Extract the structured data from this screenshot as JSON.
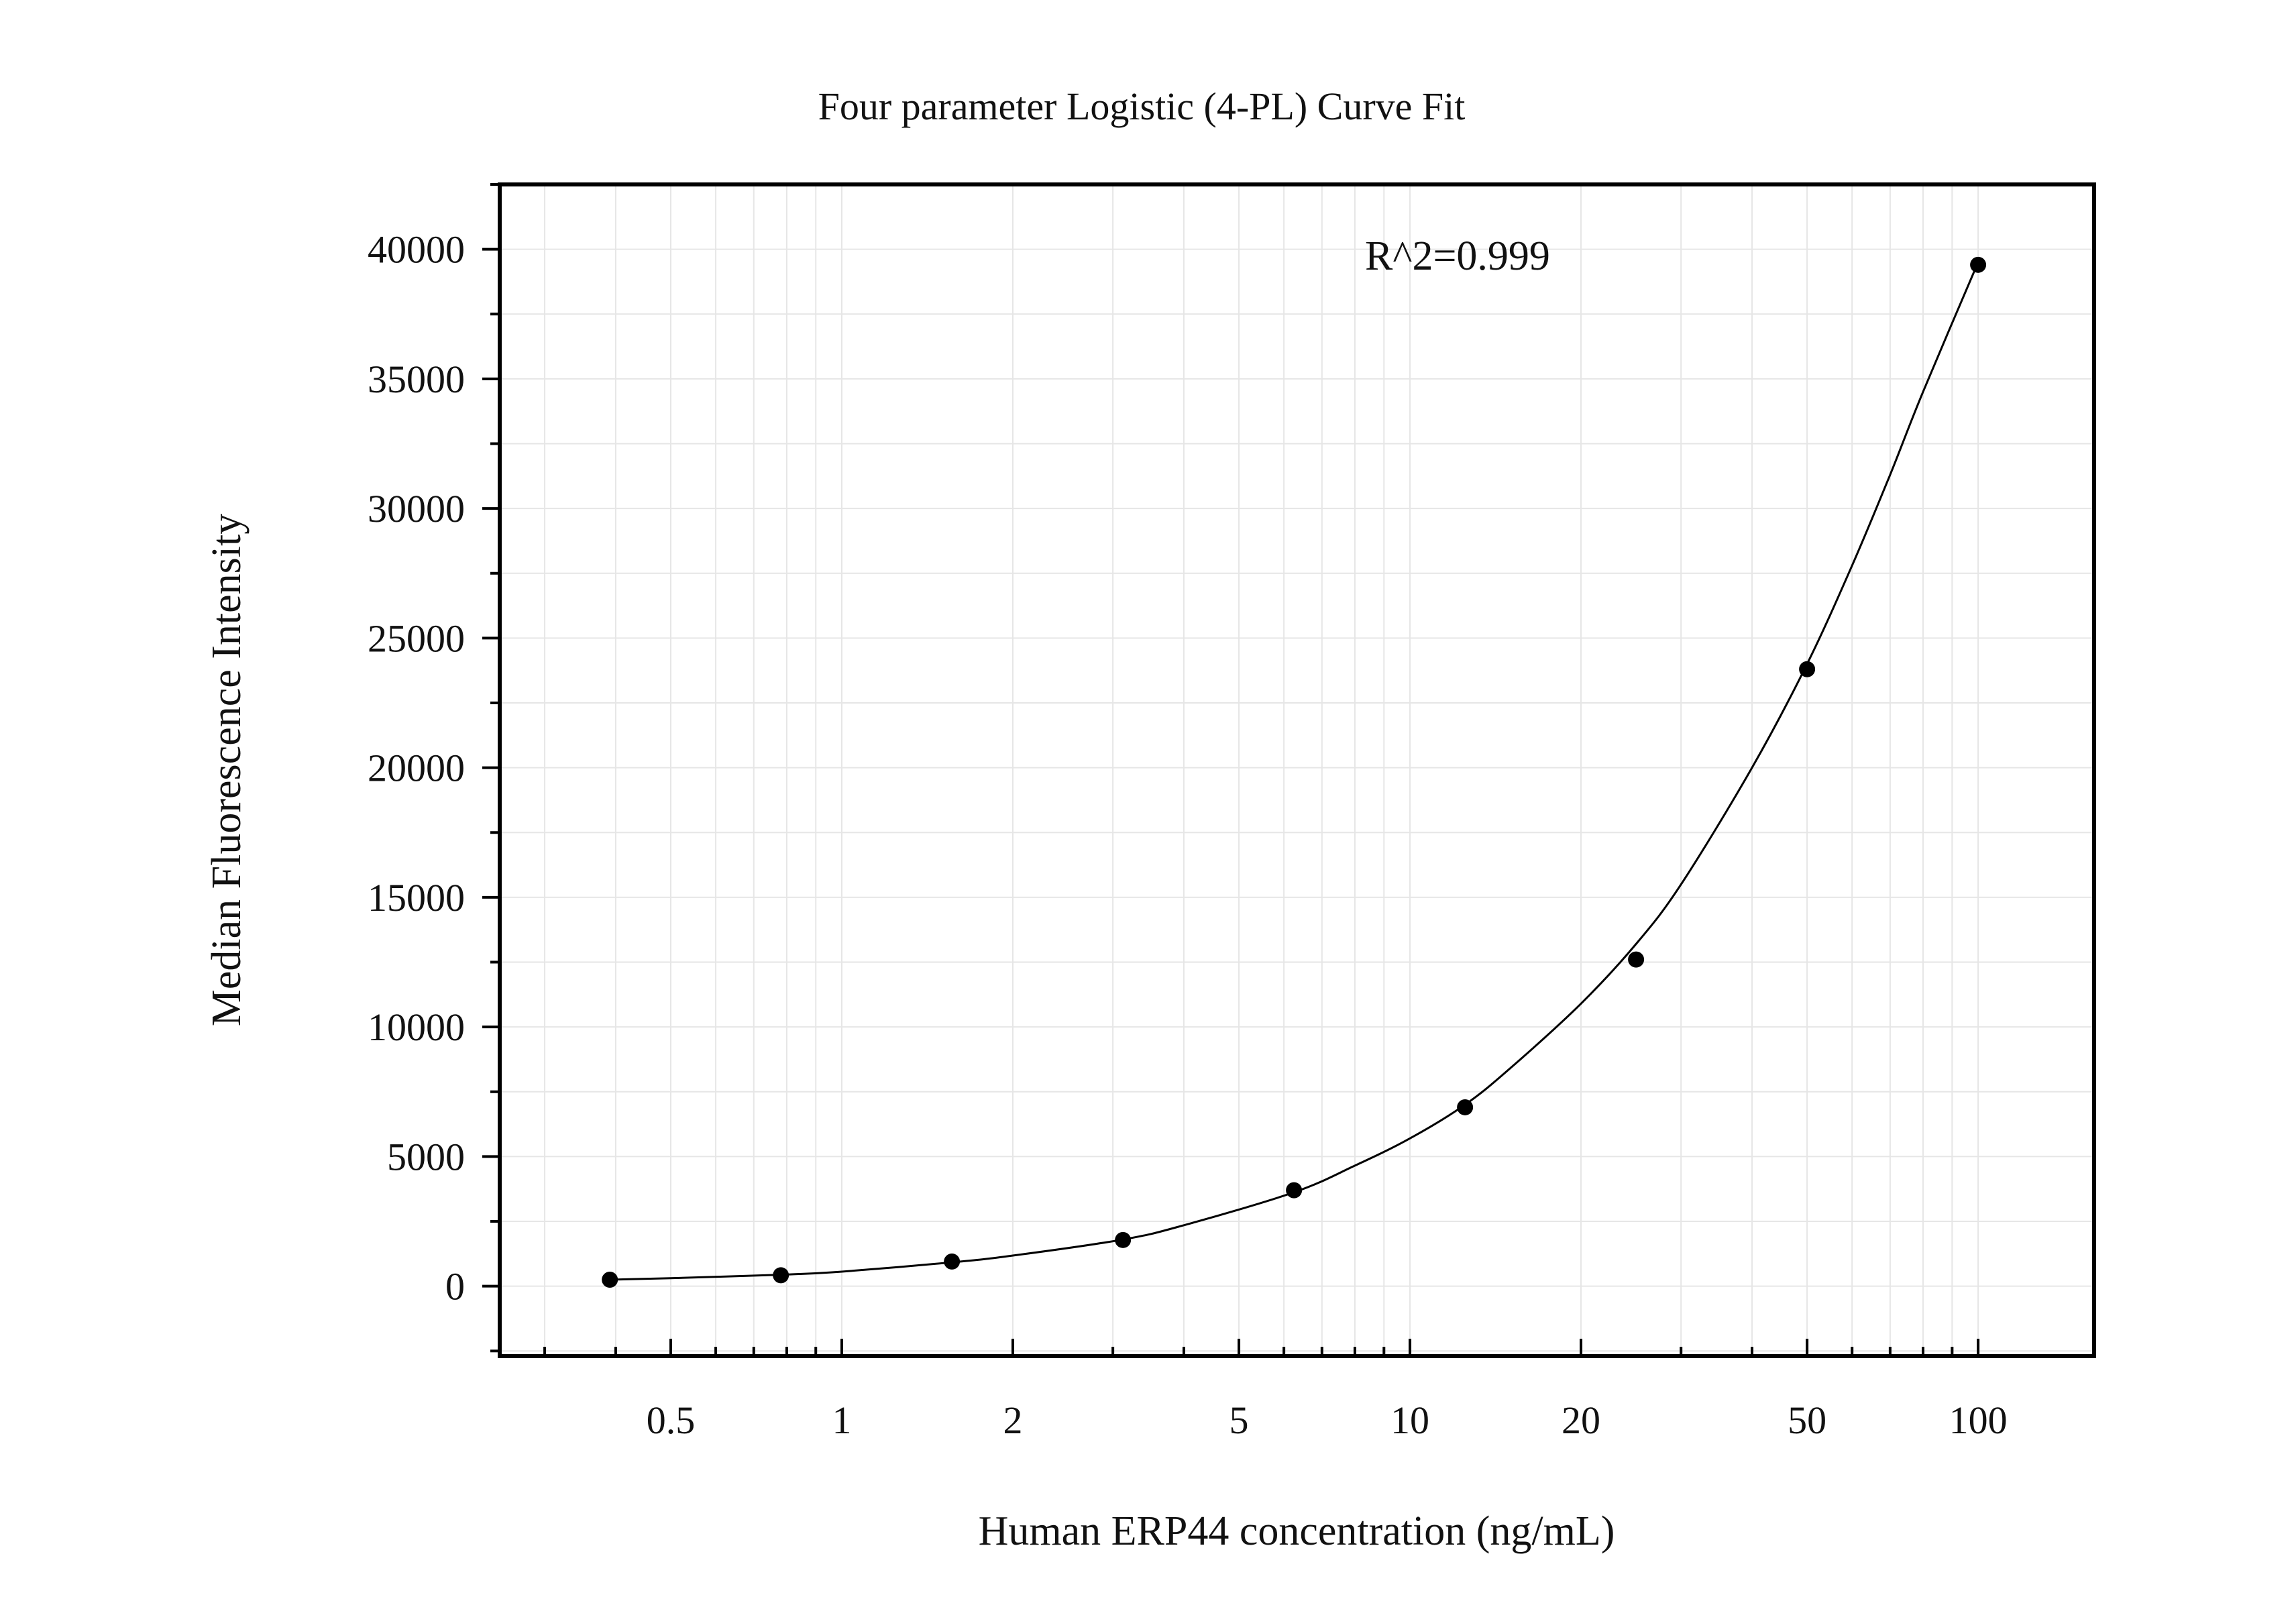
{
  "chart_data": {
    "type": "scatter",
    "title": "Four parameter Logistic (4-PL) Curve Fit",
    "xlabel": "Human ERP44 concentration (ng/mL)",
    "ylabel": "Median Fluorescence Intensity",
    "x_scale": "log",
    "xlim": [
      0.25,
      160
    ],
    "ylim": [
      -2700,
      42500
    ],
    "x_ticks": [
      0.5,
      1,
      2,
      5,
      10,
      20,
      50,
      100
    ],
    "x_tick_labels": [
      "0.5",
      "1",
      "2",
      "5",
      "10",
      "20",
      "50",
      "100"
    ],
    "y_ticks": [
      0,
      5000,
      10000,
      15000,
      20000,
      25000,
      30000,
      35000,
      40000
    ],
    "y_tick_labels": [
      "0",
      "5000",
      "10000",
      "15000",
      "20000",
      "25000",
      "30000",
      "35000",
      "40000"
    ],
    "grid": true,
    "annotation": "R^2=0.999",
    "series": [
      {
        "kind": "points",
        "x": [
          0.390625,
          0.78125,
          1.5625,
          3.125,
          6.25,
          12.5,
          25,
          50,
          100
        ],
        "y": [
          250,
          420,
          950,
          1780,
          3700,
          6900,
          12600,
          23800,
          39400
        ]
      },
      {
        "kind": "fit-curve",
        "x": [
          0.390625,
          0.5,
          0.78125,
          1.0,
          1.5625,
          2.0,
          3.125,
          4.0,
          6.25,
          8.0,
          10.0,
          12.5,
          15.0,
          20.0,
          25.0,
          30.0,
          40.0,
          50.0,
          60.0,
          70.0,
          80.0,
          100.0
        ],
        "y": [
          250,
          310,
          440,
          560,
          920,
          1180,
          1800,
          2350,
          3620,
          4650,
          5700,
          7000,
          8400,
          10900,
          13200,
          15500,
          20000,
          24000,
          27800,
          31300,
          34500,
          39500
        ]
      }
    ],
    "colors": {
      "points": "#000000",
      "curve": "#000000",
      "grid": "#e6e6e6",
      "frame": "#000000"
    }
  }
}
